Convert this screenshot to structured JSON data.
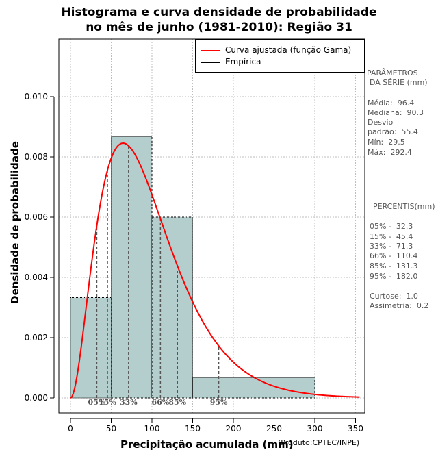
{
  "title_line1": "Histograma e curva densidade de probabilidade",
  "title_line2": "no mês de junho (1981-2010): Região 31",
  "xlabel": "Precipitação acumulada (mm)",
  "ylabel": "Densidade de probabilidade",
  "product_note": "(Produto:CPTEC/INPE)",
  "legend": {
    "fitted": "Curva ajustada (função Gama)",
    "empirical": "Empírica"
  },
  "colors": {
    "bar_fill": "#b4cdcd",
    "curve": "#ff0000",
    "percentile_line": "#555555",
    "grid": "#bebebe"
  },
  "parameters": {
    "heading1": "PARÂMETROS",
    "heading2": "DA SÉRIE (mm)",
    "media": "Média:  96.4",
    "mediana": "Mediana:  90.3",
    "desvio1": "Desvio",
    "desvio2": "padrão:  55.4",
    "min": "Mín:  29.5",
    "max": "Máx:  292.4"
  },
  "percentiles_block": {
    "heading": "PERCENTIS(mm)",
    "p05": "05% -  32.3",
    "p15": "15% -  45.4",
    "p33": "33% -  71.3",
    "p66": "66% -  110.4",
    "p85": "85% -  131.3",
    "p95": "95% -  182.0",
    "curtose": "Curtose:  1.0",
    "assimetria": "Assimetria:  0.2"
  },
  "chart_data": {
    "type": "bar",
    "title": "Histograma e curva densidade de probabilidade no mês de junho (1981-2010): Região 31",
    "xlabel": "Precipitação acumulada (mm)",
    "ylabel": "Densidade de probabilidade",
    "xlim": [
      -8,
      355
    ],
    "ylim": [
      -0.0005,
      0.0119
    ],
    "xticks": [
      0,
      50,
      100,
      150,
      200,
      250,
      300,
      350
    ],
    "xtick_labels": [
      "0",
      "50",
      "100",
      "150",
      "200",
      "250",
      "300",
      "350"
    ],
    "yticks": [
      0,
      0.002,
      0.004,
      0.006,
      0.008,
      0.01
    ],
    "ytick_labels": [
      "0.000",
      "0.002",
      "0.004",
      "0.006",
      "0.008",
      "0.010"
    ],
    "grid": true,
    "legend_position": "top-right",
    "bins": [
      {
        "start": 0,
        "end": 50,
        "value": 0.00333
      },
      {
        "start": 50,
        "end": 100,
        "value": 0.00867
      },
      {
        "start": 100,
        "end": 150,
        "value": 0.006
      },
      {
        "start": 150,
        "end": 300,
        "value": 0.00067
      }
    ],
    "gamma_fit": {
      "shape": 3.03,
      "scale": 31.8
    },
    "percentile_markers": [
      {
        "label": "05%",
        "x": 32.3
      },
      {
        "label": "15%",
        "x": 45.4
      },
      {
        "label": "33%",
        "x": 71.3
      },
      {
        "label": "66%",
        "x": 110.4
      },
      {
        "label": "85%",
        "x": 131.3
      },
      {
        "label": "95%",
        "x": 182.0
      }
    ]
  }
}
